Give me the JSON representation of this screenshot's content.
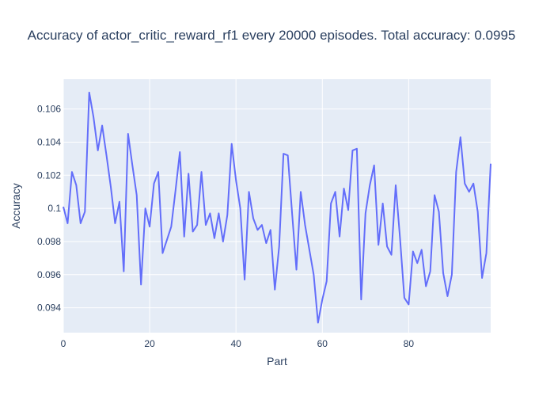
{
  "chart_data": {
    "type": "line",
    "title": "Accuracy of actor_critic_reward_rf1 every 20000 episodes. Total accuracy: 0.0995",
    "xlabel": "Part",
    "ylabel": "Accuracy",
    "xlim": [
      0,
      99
    ],
    "ylim": [
      0.0925,
      0.1078
    ],
    "xticks": [
      0,
      20,
      40,
      60,
      80
    ],
    "xtick_labels": [
      "0",
      "20",
      "40",
      "60",
      "80"
    ],
    "yticks": [
      0.094,
      0.096,
      0.098,
      0.1,
      0.102,
      0.104,
      0.106
    ],
    "ytick_labels": [
      "0.094",
      "0.096",
      "0.098",
      "0.1",
      "0.102",
      "0.104",
      "0.106"
    ],
    "grid": true,
    "colors": {
      "line": "#636efa",
      "plot_bg": "#e5ecf6",
      "grid": "#ffffff"
    },
    "series": [
      {
        "values": [
          0.1001,
          0.0991,
          0.1022,
          0.1014,
          0.0991,
          0.0998,
          0.107,
          0.1055,
          0.1035,
          0.105,
          0.1032,
          0.1013,
          0.0991,
          0.1004,
          0.0962,
          0.1045,
          0.1026,
          0.1008,
          0.0954,
          0.1,
          0.0989,
          0.1015,
          0.1022,
          0.0973,
          0.0981,
          0.0989,
          0.1011,
          0.1034,
          0.0983,
          0.1021,
          0.0986,
          0.099,
          0.1022,
          0.099,
          0.0997,
          0.0982,
          0.0997,
          0.098,
          0.0996,
          0.1039,
          0.1017,
          0.1,
          0.0957,
          0.101,
          0.0994,
          0.0987,
          0.099,
          0.0979,
          0.0987,
          0.0951,
          0.0977,
          0.1033,
          0.1032,
          0.0997,
          0.0963,
          0.101,
          0.099,
          0.0975,
          0.096,
          0.0931,
          0.0945,
          0.0956,
          0.1003,
          0.101,
          0.0983,
          0.1012,
          0.0999,
          0.1035,
          0.1036,
          0.0945,
          0.0997,
          0.1014,
          0.1026,
          0.0978,
          0.1003,
          0.0977,
          0.0972,
          0.1014,
          0.0982,
          0.0946,
          0.0942,
          0.0974,
          0.0967,
          0.0975,
          0.0953,
          0.0962,
          0.1008,
          0.0998,
          0.0961,
          0.0947,
          0.096,
          0.1022,
          0.1043,
          0.1015,
          0.101,
          0.1015,
          0.0998,
          0.0958,
          0.0973,
          0.1027
        ]
      }
    ]
  }
}
